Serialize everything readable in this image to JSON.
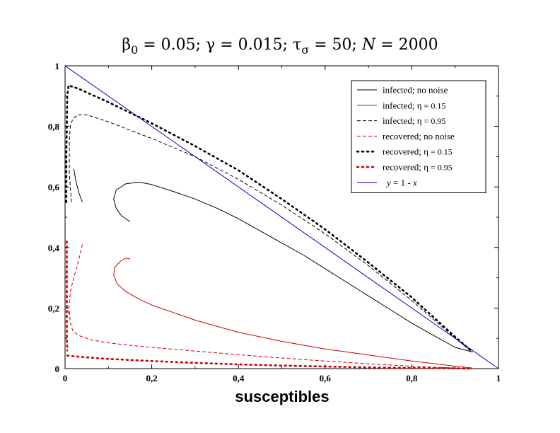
{
  "chart_data": {
    "type": "line",
    "title_parts": {
      "beta": "β",
      "beta_sub": "0",
      "beta_val": " = 0.05; ",
      "gamma": "γ",
      "gamma_val": " = 0.015; ",
      "tau": "τ",
      "tau_sub": "σ",
      "tau_val": " = 50; ",
      "n": "N",
      "n_val": " = 2000"
    },
    "xlabel": "susceptibles",
    "ylabel": "",
    "xlim": [
      0,
      1
    ],
    "ylim": [
      0,
      1
    ],
    "x_ticks": [
      0,
      0.2,
      0.4,
      0.6,
      0.8,
      1
    ],
    "y_ticks": [
      0,
      0.2,
      0.4,
      0.6,
      0.8,
      1
    ],
    "x_tick_labels": [
      "0",
      "0,2",
      "0,4",
      "0,6",
      "0,8",
      "1"
    ],
    "y_tick_labels": [
      "0",
      "0,2",
      "0,4",
      "0,6",
      "0,8",
      "1"
    ],
    "legend_position": "top-right",
    "series": [
      {
        "name": "infected; no noise",
        "legend": "infected; no noise",
        "color": "#000000",
        "style": "solid",
        "points": [
          [
            0.15,
            0.485
          ],
          [
            0.13,
            0.505
          ],
          [
            0.118,
            0.53
          ],
          [
            0.112,
            0.56
          ],
          [
            0.118,
            0.59
          ],
          [
            0.14,
            0.61
          ],
          [
            0.17,
            0.616
          ],
          [
            0.2,
            0.608
          ],
          [
            0.25,
            0.585
          ],
          [
            0.3,
            0.56
          ],
          [
            0.35,
            0.53
          ],
          [
            0.4,
            0.495
          ],
          [
            0.45,
            0.455
          ],
          [
            0.5,
            0.415
          ],
          [
            0.55,
            0.375
          ],
          [
            0.6,
            0.33
          ],
          [
            0.65,
            0.285
          ],
          [
            0.7,
            0.24
          ],
          [
            0.75,
            0.195
          ],
          [
            0.8,
            0.15
          ],
          [
            0.85,
            0.11
          ],
          [
            0.9,
            0.07
          ],
          [
            0.94,
            0.055
          ]
        ]
      },
      {
        "name": "infected; η = 0.15",
        "legend_prefix": "infected; ",
        "legend_symbol": "η",
        "legend_suffix": " = 0.15",
        "color": "#cc0000",
        "style": "solid",
        "points": [
          [
            0.15,
            0.362
          ],
          [
            0.14,
            0.365
          ],
          [
            0.128,
            0.355
          ],
          [
            0.115,
            0.335
          ],
          [
            0.112,
            0.31
          ],
          [
            0.12,
            0.28
          ],
          [
            0.14,
            0.255
          ],
          [
            0.17,
            0.23
          ],
          [
            0.2,
            0.21
          ],
          [
            0.25,
            0.185
          ],
          [
            0.3,
            0.16
          ],
          [
            0.35,
            0.14
          ],
          [
            0.4,
            0.12
          ],
          [
            0.5,
            0.09
          ],
          [
            0.6,
            0.065
          ],
          [
            0.7,
            0.045
          ],
          [
            0.8,
            0.025
          ],
          [
            0.9,
            0.008
          ],
          [
            0.94,
            0.002
          ]
        ]
      },
      {
        "name": "infected; η = 0.95",
        "legend_prefix": "infected;  ",
        "legend_symbol": "η",
        "legend_suffix": " = 0.95",
        "color": "#000000",
        "style": "dashed",
        "points": [
          [
            0.015,
            0.55
          ],
          [
            0.012,
            0.6
          ],
          [
            0.01,
            0.65
          ],
          [
            0.01,
            0.7
          ],
          [
            0.01,
            0.75
          ],
          [
            0.012,
            0.8
          ],
          [
            0.018,
            0.825
          ],
          [
            0.03,
            0.838
          ],
          [
            0.05,
            0.838
          ],
          [
            0.1,
            0.815
          ],
          [
            0.2,
            0.76
          ],
          [
            0.3,
            0.7
          ],
          [
            0.4,
            0.625
          ],
          [
            0.5,
            0.54
          ],
          [
            0.6,
            0.445
          ],
          [
            0.7,
            0.34
          ],
          [
            0.8,
            0.225
          ],
          [
            0.9,
            0.1
          ],
          [
            0.94,
            0.055
          ]
        ]
      },
      {
        "name": "recovered; no noise",
        "legend": "recovered; no noise",
        "color": "#cc0000",
        "style": "dashed",
        "points": [
          [
            0.01,
            0.19
          ],
          [
            0.012,
            0.15
          ],
          [
            0.018,
            0.125
          ],
          [
            0.03,
            0.11
          ],
          [
            0.06,
            0.095
          ],
          [
            0.1,
            0.085
          ],
          [
            0.15,
            0.077
          ],
          [
            0.2,
            0.07
          ],
          [
            0.3,
            0.058
          ],
          [
            0.4,
            0.046
          ],
          [
            0.5,
            0.035
          ],
          [
            0.6,
            0.025
          ],
          [
            0.7,
            0.016
          ],
          [
            0.8,
            0.008
          ],
          [
            0.9,
            0.002
          ],
          [
            0.94,
            0
          ]
        ]
      },
      {
        "name": "recovered; η = 0.15",
        "legend_prefix": "recovered; ",
        "legend_symbol": "η",
        "legend_suffix": " = 0.15",
        "color": "#000000",
        "style": "dotted",
        "points": [
          [
            0.003,
            0.55
          ],
          [
            0.003,
            0.6
          ],
          [
            0.003,
            0.7
          ],
          [
            0.004,
            0.8
          ],
          [
            0.005,
            0.9
          ],
          [
            0.008,
            0.935
          ],
          [
            0.03,
            0.925
          ],
          [
            0.1,
            0.88
          ],
          [
            0.2,
            0.81
          ],
          [
            0.3,
            0.735
          ],
          [
            0.4,
            0.655
          ],
          [
            0.5,
            0.56
          ],
          [
            0.6,
            0.46
          ],
          [
            0.7,
            0.35
          ],
          [
            0.8,
            0.235
          ],
          [
            0.9,
            0.105
          ],
          [
            0.94,
            0.055
          ]
        ]
      },
      {
        "name": "recovered; η = 0.95",
        "legend_prefix": "recovered;  ",
        "legend_symbol": "η",
        "legend_suffix": " = 0.95",
        "color": "#cc0000",
        "style": "dotted",
        "points": [
          [
            0.005,
            0.043
          ],
          [
            0.05,
            0.037
          ],
          [
            0.1,
            0.032
          ],
          [
            0.2,
            0.025
          ],
          [
            0.3,
            0.019
          ],
          [
            0.4,
            0.014
          ],
          [
            0.5,
            0.01
          ],
          [
            0.6,
            0.007
          ],
          [
            0.7,
            0.004
          ],
          [
            0.8,
            0.002
          ],
          [
            0.9,
            0.001
          ],
          [
            0.94,
            0
          ]
        ]
      },
      {
        "name": "infected; η = 0.95 (upper arm)",
        "color": "#cc0000",
        "style": "dashed",
        "legend_hidden": true,
        "points": [
          [
            0.04,
            0.41
          ],
          [
            0.035,
            0.38
          ],
          [
            0.028,
            0.34
          ],
          [
            0.02,
            0.3
          ],
          [
            0.013,
            0.26
          ],
          [
            0.01,
            0.22
          ],
          [
            0.008,
            0.18
          ]
        ]
      },
      {
        "name": "recovered; η = 0.15 (lower arm)",
        "color": "#cc0000",
        "style": "dotted",
        "legend_hidden": true,
        "points": [
          [
            0.004,
            0.42
          ],
          [
            0.004,
            0.35
          ],
          [
            0.004,
            0.28
          ],
          [
            0.004,
            0.2
          ],
          [
            0.004,
            0.12
          ],
          [
            0.005,
            0.06
          ]
        ]
      },
      {
        "name": "infected; no noise (left arm)",
        "color": "#000000",
        "style": "solid",
        "legend_hidden": true,
        "points": [
          [
            0.04,
            0.55
          ],
          [
            0.032,
            0.58
          ],
          [
            0.025,
            0.62
          ],
          [
            0.02,
            0.66
          ]
        ]
      },
      {
        "name": "y = 1 - x",
        "legend_prefix": "",
        "legend_italic_y": "y",
        "legend_mid": " = 1 - ",
        "legend_italic_x": "x",
        "color": "#0000cc",
        "style": "solid",
        "points": [
          [
            0,
            1
          ],
          [
            1,
            0
          ]
        ]
      }
    ]
  }
}
